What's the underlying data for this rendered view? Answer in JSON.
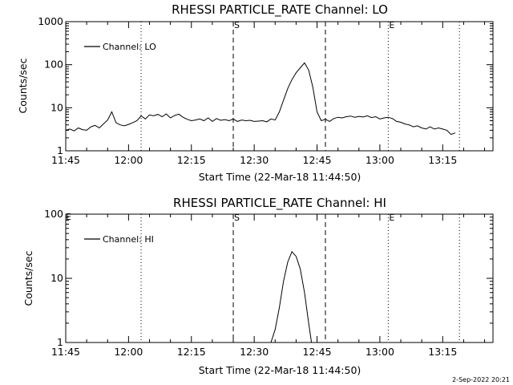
{
  "footer": {
    "date_stamp": "2-Sep-2022 20:21"
  },
  "chart_data": [
    {
      "type": "line",
      "title": "RHESSI PARTICLE_RATE Channel: LO",
      "xlabel": "Start Time (22-Mar-18 11:44:50)",
      "ylabel": "Counts/sec",
      "yscale": "log",
      "ylim": [
        1,
        1000
      ],
      "xlim": [
        "11:45",
        "13:27"
      ],
      "xticks": [
        "11:45",
        "12:00",
        "12:15",
        "12:30",
        "12:45",
        "13:00",
        "13:15"
      ],
      "yticks": [
        "1",
        "10",
        "100",
        "1000"
      ],
      "grid": false,
      "legend_position": "top-left",
      "series": [
        {
          "name": "Channel: LO",
          "x": [
            "11:45",
            "11:46",
            "11:47",
            "11:48",
            "11:49",
            "11:50",
            "11:51",
            "11:52",
            "11:53",
            "11:54",
            "11:55",
            "11:56",
            "11:57",
            "11:58",
            "11:59",
            "12:00",
            "12:01",
            "12:02",
            "12:03",
            "12:04",
            "12:05",
            "12:06",
            "12:07",
            "12:08",
            "12:09",
            "12:10",
            "12:11",
            "12:12",
            "12:13",
            "12:14",
            "12:15",
            "12:16",
            "12:17",
            "12:18",
            "12:19",
            "12:20",
            "12:21",
            "12:22",
            "12:23",
            "12:24",
            "12:25",
            "12:26",
            "12:27",
            "12:28",
            "12:29",
            "12:30",
            "12:31",
            "12:32",
            "12:33",
            "12:34",
            "12:35",
            "12:36",
            "12:37",
            "12:38",
            "12:39",
            "12:40",
            "12:41",
            "12:42",
            "12:43",
            "12:44",
            "12:45",
            "12:46",
            "12:47",
            "12:48",
            "12:49",
            "12:50",
            "12:51",
            "12:52",
            "12:53",
            "12:54",
            "12:55",
            "12:56",
            "12:57",
            "12:58",
            "12:59",
            "13:00",
            "13:01",
            "13:02",
            "13:03",
            "13:04",
            "13:05",
            "13:06",
            "13:07",
            "13:08",
            "13:09",
            "13:10",
            "13:11",
            "13:12",
            "13:13",
            "13:14",
            "13:15",
            "13:16",
            "13:17",
            "13:18"
          ],
          "y": [
            3.0,
            3.2,
            2.9,
            3.4,
            3.1,
            3.0,
            3.6,
            3.9,
            3.4,
            4.2,
            5.2,
            8.0,
            4.5,
            4.0,
            3.8,
            4.1,
            4.5,
            5.0,
            6.5,
            5.5,
            6.8,
            6.5,
            7.0,
            6.2,
            7.2,
            5.8,
            6.6,
            7.1,
            6.0,
            5.4,
            5.0,
            5.2,
            5.5,
            5.0,
            5.8,
            4.8,
            5.6,
            5.1,
            5.3,
            5.0,
            5.5,
            4.8,
            5.2,
            5.0,
            5.1,
            4.8,
            4.9,
            5.0,
            4.7,
            5.5,
            5.2,
            8.0,
            15,
            28,
            45,
            65,
            85,
            110,
            75,
            30,
            8,
            5.0,
            5.4,
            4.8,
            5.6,
            6.0,
            5.8,
            6.2,
            6.4,
            6.0,
            6.3,
            6.1,
            6.5,
            5.9,
            6.2,
            5.5,
            5.8,
            6.0,
            5.6,
            4.8,
            4.6,
            4.2,
            4.0,
            3.6,
            3.8,
            3.4,
            3.2,
            3.6,
            3.2,
            3.4,
            3.2,
            3.0,
            2.4,
            2.6
          ]
        }
      ],
      "annotations": [
        {
          "label": "",
          "time": "12:03",
          "style": "dotted"
        },
        {
          "label": "S",
          "time": "12:25",
          "style": "dashed"
        },
        {
          "label": "",
          "time": "12:47",
          "style": "dashed"
        },
        {
          "label": "E",
          "time": "13:02",
          "style": "dotted"
        },
        {
          "label": "",
          "time": "13:19",
          "style": "dotted"
        }
      ],
      "edge_label": ""
    },
    {
      "type": "line",
      "title": "RHESSI PARTICLE_RATE Channel: HI",
      "xlabel": "Start Time (22-Mar-18 11:44:50)",
      "ylabel": "Counts/sec",
      "yscale": "log",
      "ylim": [
        1,
        100
      ],
      "xlim": [
        "11:45",
        "13:27"
      ],
      "xticks": [
        "11:45",
        "12:00",
        "12:15",
        "12:30",
        "12:45",
        "13:00",
        "13:15"
      ],
      "yticks": [
        "1",
        "10",
        "100"
      ],
      "grid": false,
      "legend_position": "top-left",
      "series": [
        {
          "name": "Channel: HI",
          "x": [
            "12:34:00",
            "12:35:00",
            "12:36:00",
            "12:37:00",
            "12:38:00",
            "12:39:00",
            "12:40:00",
            "12:41:00",
            "12:42:00",
            "12:43:00",
            "12:43:40"
          ],
          "y": [
            1.0,
            1.6,
            3.5,
            9.0,
            18,
            26,
            22,
            14,
            6.0,
            2.0,
            1.0
          ]
        }
      ],
      "annotations": [
        {
          "label": "",
          "time": "12:03",
          "style": "dotted"
        },
        {
          "label": "S",
          "time": "12:25",
          "style": "dashed"
        },
        {
          "label": "",
          "time": "12:47",
          "style": "dashed"
        },
        {
          "label": "E",
          "time": "13:02",
          "style": "dotted"
        },
        {
          "label": "",
          "time": "13:19",
          "style": "dotted"
        }
      ],
      "edge_label": "E"
    }
  ]
}
